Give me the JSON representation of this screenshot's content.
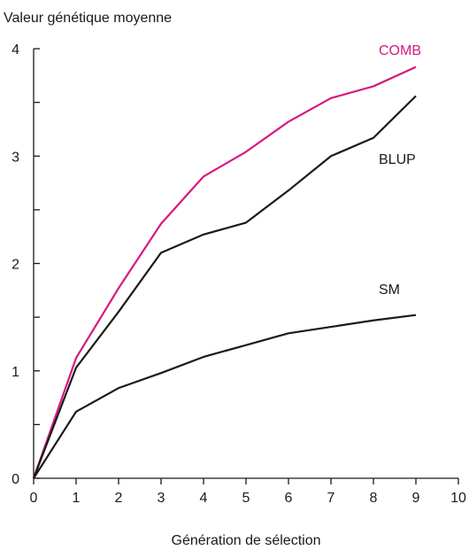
{
  "chart_data": {
    "type": "line",
    "title": "",
    "ylabel": "Valeur génétique moyenne",
    "xlabel": "Génération de sélection",
    "xlim": [
      0,
      10
    ],
    "ylim": [
      0,
      4
    ],
    "x_ticks": [
      "0",
      "1",
      "2",
      "3",
      "4",
      "5",
      "6",
      "7",
      "8",
      "9",
      "10"
    ],
    "y_ticks": [
      "0",
      "1",
      "2",
      "3",
      "4"
    ],
    "grid": false,
    "series": [
      {
        "name": "COMB",
        "color": "#d6197f",
        "x": [
          0,
          1,
          2,
          3,
          4,
          5,
          6,
          7,
          8,
          9
        ],
        "values": [
          0,
          1.12,
          1.77,
          2.37,
          2.81,
          3.04,
          3.32,
          3.54,
          3.65,
          3.83
        ]
      },
      {
        "name": "BLUP",
        "color": "#1a1a1a",
        "x": [
          0,
          1,
          2,
          3,
          4,
          5,
          6,
          7,
          8,
          9
        ],
        "values": [
          0,
          1.03,
          1.55,
          2.1,
          2.27,
          2.38,
          2.68,
          3.0,
          3.17,
          3.56
        ]
      },
      {
        "name": "SM",
        "color": "#1a1a1a",
        "x": [
          0,
          1,
          2,
          3,
          4,
          5,
          6,
          7,
          8,
          9
        ],
        "values": [
          0,
          0.62,
          0.84,
          0.98,
          1.13,
          1.24,
          1.35,
          1.41,
          1.47,
          1.52
        ]
      }
    ]
  }
}
